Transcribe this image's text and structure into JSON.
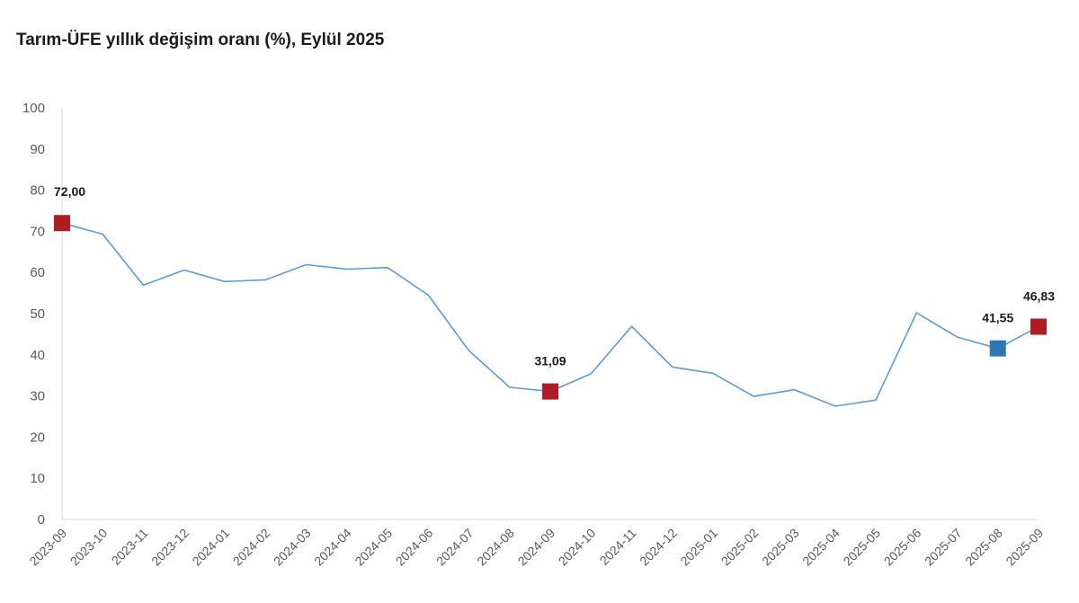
{
  "chart_data": {
    "type": "line",
    "title": "Tarım-ÜFE yıllık değişim oranı (%), Eylül 2025",
    "xlabel": "",
    "ylabel": "",
    "ylim": [
      0,
      100
    ],
    "yticks": [
      0,
      10,
      20,
      30,
      40,
      50,
      60,
      70,
      80,
      90,
      100
    ],
    "grid": false,
    "categories": [
      "2023-09",
      "2023-10",
      "2023-11",
      "2023-12",
      "2024-01",
      "2024-02",
      "2024-03",
      "2024-04",
      "2024-05",
      "2024-06",
      "2024-07",
      "2024-08",
      "2024-09",
      "2024-10",
      "2024-11",
      "2024-12",
      "2025-01",
      "2025-02",
      "2025-03",
      "2025-04",
      "2025-05",
      "2025-06",
      "2025-07",
      "2025-08",
      "2025-09"
    ],
    "series": [
      {
        "values": [
          72.0,
          69.3,
          56.9,
          60.6,
          57.8,
          58.2,
          61.9,
          60.8,
          61.2,
          54.5,
          41.0,
          32.1,
          31.09,
          35.4,
          46.9,
          37.0,
          35.5,
          29.9,
          31.5,
          27.5,
          29.0,
          50.2,
          44.3,
          41.55,
          46.83
        ],
        "color": "#5b9bd5"
      }
    ],
    "highlights": [
      {
        "index": 0,
        "label": "72,00",
        "color": "#b01c24"
      },
      {
        "index": 12,
        "label": "31,09",
        "color": "#b01c24"
      },
      {
        "index": 23,
        "label": "41,55",
        "color": "#2e75b6"
      },
      {
        "index": 24,
        "label": "46,83",
        "color": "#b01c24"
      }
    ]
  }
}
